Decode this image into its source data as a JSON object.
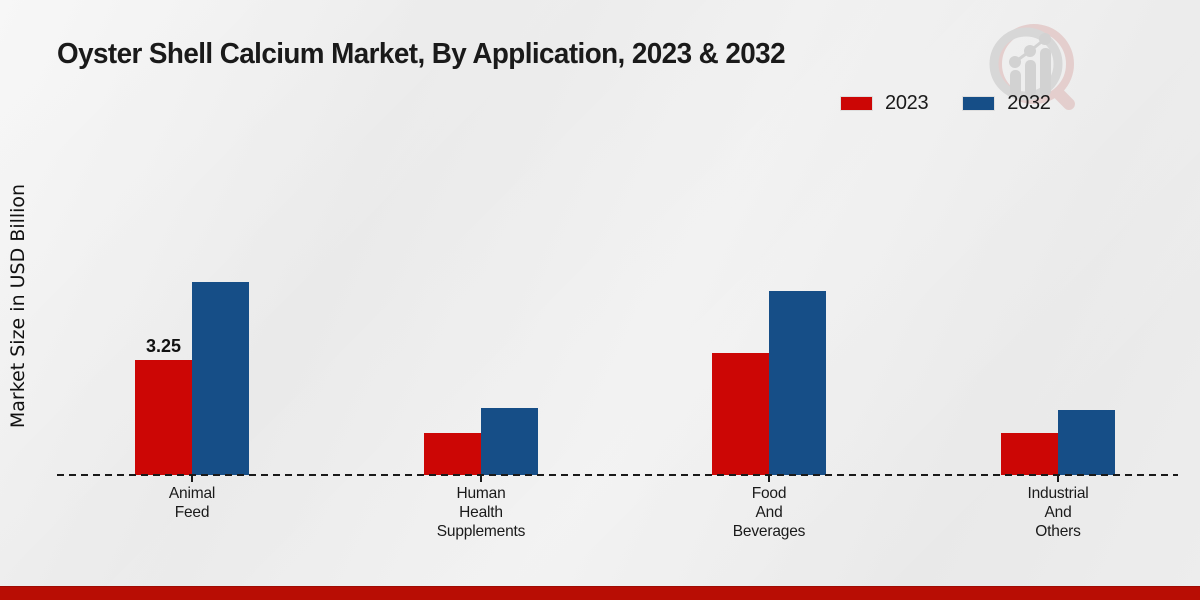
{
  "chart_data": {
    "type": "bar",
    "title": "Oyster Shell Calcium Market, By Application, 2023 & 2032",
    "ylabel": "Market Size in USD Billion",
    "xlabel": "",
    "categories": [
      "Animal\nFeed",
      "Human\nHealth\nSupplements",
      "Food\nAnd\nBeverages",
      "Industrial\nAnd\nOthers"
    ],
    "series": [
      {
        "name": "2023",
        "color": "#cc0605",
        "values": [
          3.25,
          1.2,
          3.45,
          1.2
        ]
      },
      {
        "name": "2032",
        "color": "#164e87",
        "values": [
          5.45,
          1.9,
          5.2,
          1.85
        ]
      }
    ],
    "data_labels": [
      {
        "series_index": 0,
        "category_index": 0,
        "text": "3.25"
      }
    ],
    "ylim": [
      0,
      6.8
    ],
    "axis_style": "dashed zero line only, no visible y-axis ticks",
    "legend_position": "top-right",
    "grid": false
  },
  "branding": {
    "logo_icon": "magnifier-bar-chart-watermark",
    "footer_strip_color": "#b80d04"
  }
}
